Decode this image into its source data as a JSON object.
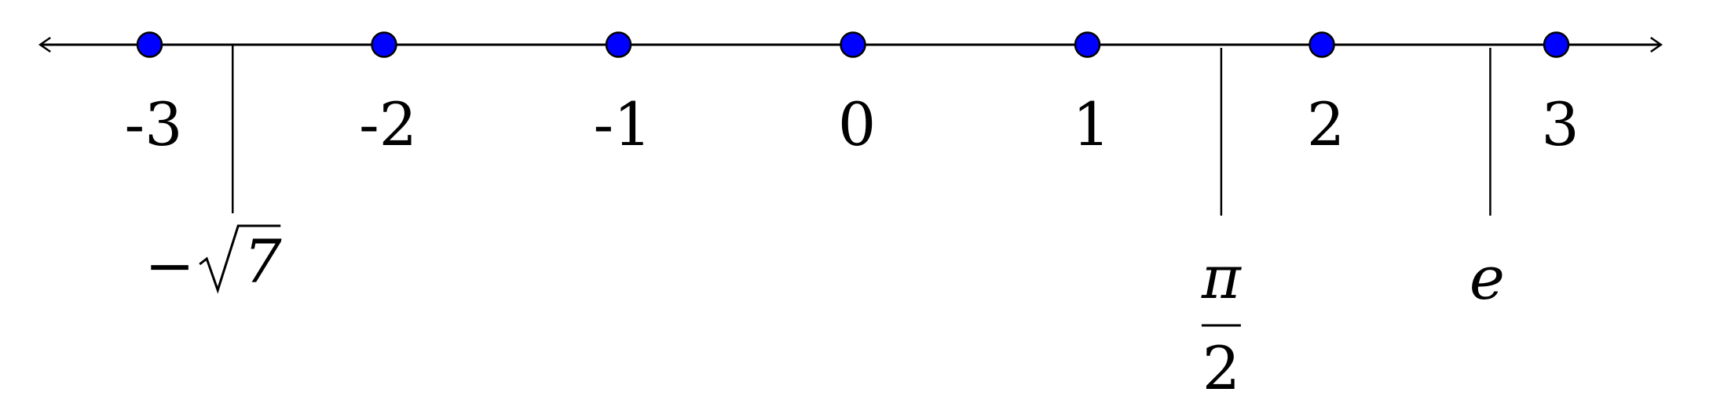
{
  "colors": {
    "dot_fill": "#0000ff",
    "dot_stroke": "#000000",
    "line": "#000000",
    "background": "#ffffff"
  },
  "chart_data": {
    "type": "number-line",
    "xlim": [
      -3.45,
      3.5
    ],
    "integer_points": [
      {
        "value": -3,
        "label": "-3"
      },
      {
        "value": -2,
        "label": "-2"
      },
      {
        "value": -1,
        "label": "-1"
      },
      {
        "value": 0,
        "label": "0"
      },
      {
        "value": 1,
        "label": "1"
      },
      {
        "value": 2,
        "label": "2"
      },
      {
        "value": 3,
        "label": "3"
      }
    ],
    "irrational_marks": [
      {
        "value": -2.6458,
        "name": "neg-sqrt7",
        "label_prefix": "−",
        "label_radicand": "7"
      },
      {
        "value": 1.5708,
        "name": "pi-over-2",
        "label_numerator": "π",
        "label_denominator": "2"
      },
      {
        "value": 2.7183,
        "name": "e",
        "label": "e"
      }
    ]
  }
}
